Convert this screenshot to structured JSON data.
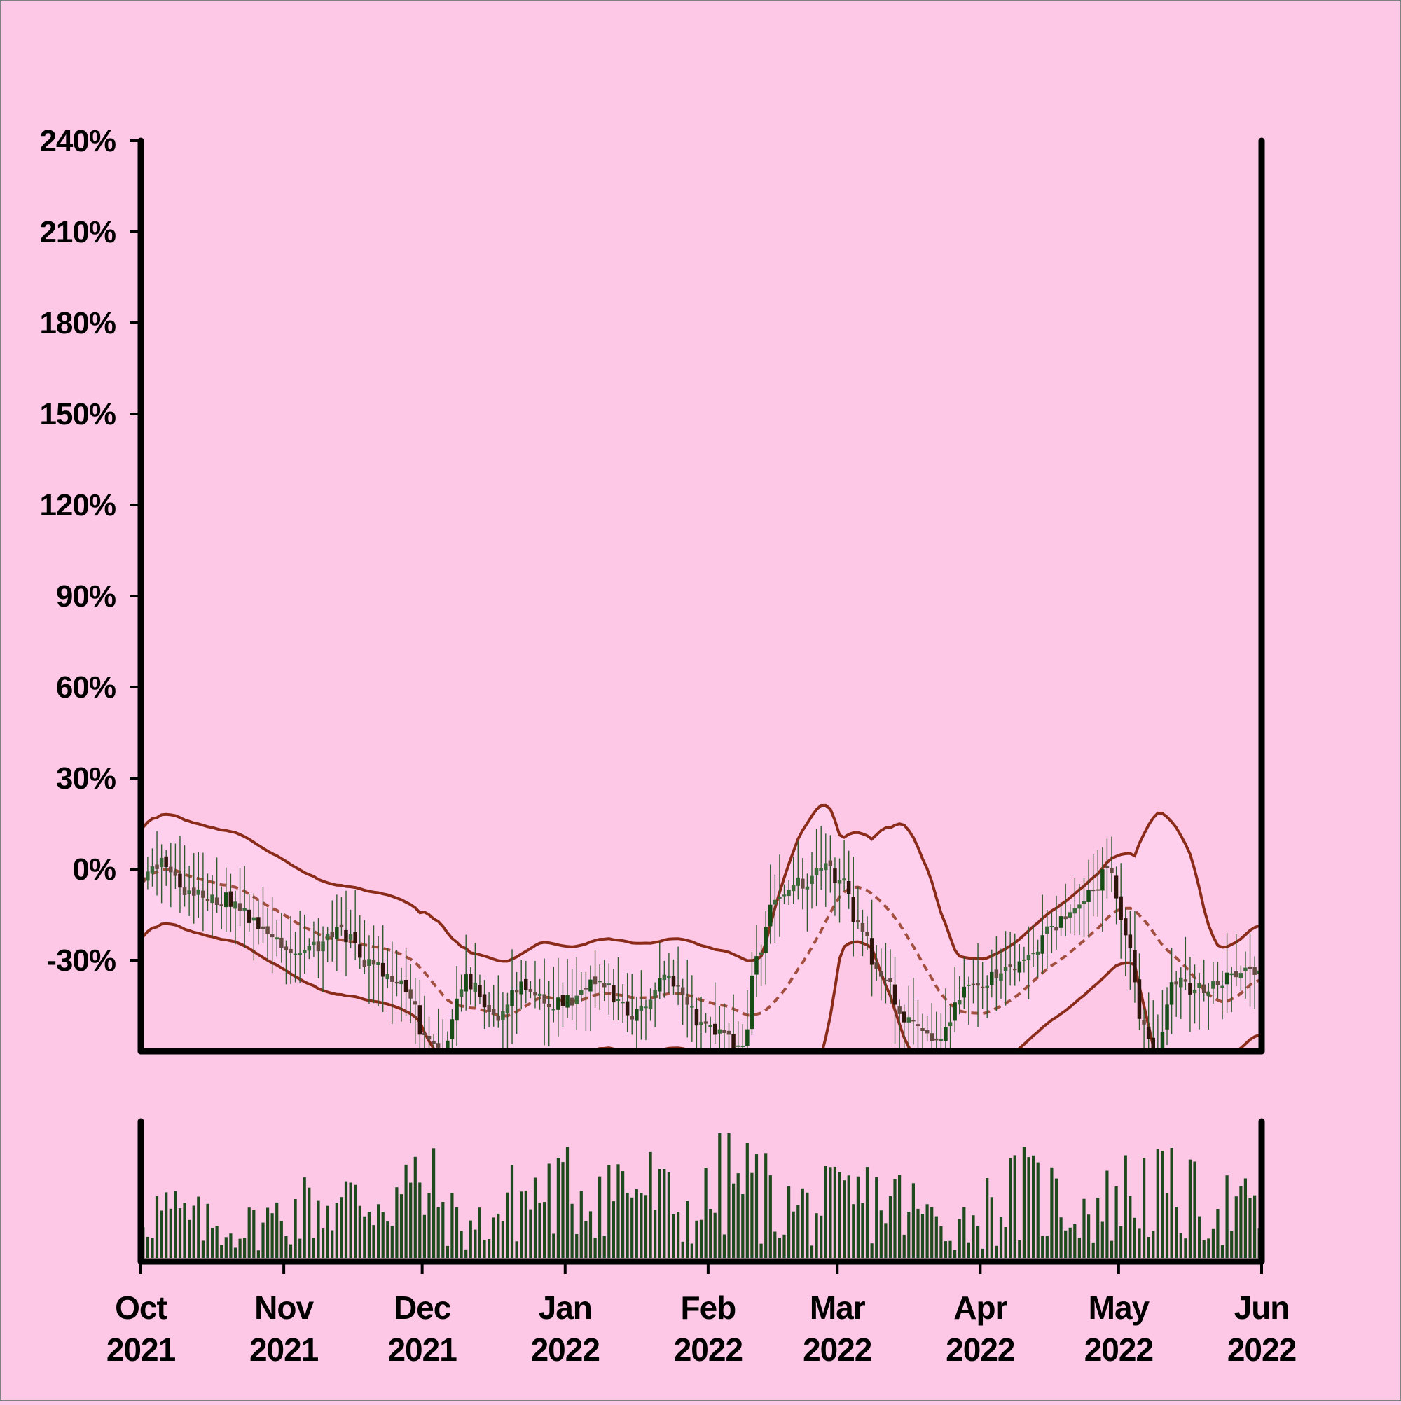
{
  "colors": {
    "background": "#fdc8e6",
    "axis": "#000000",
    "candle_up": "#3b6b3b",
    "candle_down": "#654c43",
    "candle_strong_up": "#174d17",
    "candle_strong_down": "#2f160c",
    "wick": "#2f5a2f",
    "band_line": "#8b2b1a",
    "middle_band": "#a24f3f",
    "band_fill": "#ffd0ee",
    "volume_bar": "#1e4a1e"
  },
  "chart_data": {
    "type": "candlestick",
    "overlays": [
      "bollinger_upper",
      "bollinger_middle",
      "bollinger_lower"
    ],
    "y_axis": {
      "ticks": [
        -30,
        0,
        30,
        60,
        90,
        120,
        150,
        180,
        210,
        240
      ],
      "tick_labels": [
        "-30%",
        "0%",
        "30%",
        "60%",
        "90%",
        "120%",
        "150%",
        "180%",
        "210%",
        "240%"
      ],
      "range": [
        -60,
        240
      ],
      "unit": "%"
    },
    "x_axis": {
      "range": [
        "2021-10-01",
        "2022-06-01"
      ],
      "ticks": [
        {
          "date": "2021-10-01",
          "month": "Oct",
          "year": "2021"
        },
        {
          "date": "2021-11-01",
          "month": "Nov",
          "year": "2021"
        },
        {
          "date": "2021-12-01",
          "month": "Dec",
          "year": "2021"
        },
        {
          "date": "2022-01-01",
          "month": "Jan",
          "year": "2022"
        },
        {
          "date": "2022-02-01",
          "month": "Feb",
          "year": "2022"
        },
        {
          "date": "2022-03-01",
          "month": "Mar",
          "year": "2022"
        },
        {
          "date": "2022-04-01",
          "month": "Apr",
          "year": "2022"
        },
        {
          "date": "2022-05-01",
          "month": "May",
          "year": "2022"
        },
        {
          "date": "2022-06-01",
          "month": "Jun",
          "year": "2022"
        }
      ]
    },
    "close_keypoints": [
      [
        "2021-10-01",
        -2
      ],
      [
        "2021-10-05",
        3
      ],
      [
        "2021-10-10",
        -8
      ],
      [
        "2021-10-20",
        -10
      ],
      [
        "2021-10-28",
        -22
      ],
      [
        "2021-11-05",
        -28
      ],
      [
        "2021-11-12",
        -20
      ],
      [
        "2021-11-20",
        -32
      ],
      [
        "2021-11-27",
        -38
      ],
      [
        "2021-12-01",
        -56
      ],
      [
        "2021-12-05",
        -60
      ],
      [
        "2021-12-10",
        -37
      ],
      [
        "2021-12-17",
        -50
      ],
      [
        "2021-12-22",
        -38
      ],
      [
        "2021-12-30",
        -44
      ],
      [
        "2022-01-08",
        -38
      ],
      [
        "2022-01-15",
        -48
      ],
      [
        "2022-01-23",
        -36
      ],
      [
        "2022-01-30",
        -50
      ],
      [
        "2022-02-08",
        -58
      ],
      [
        "2022-02-11",
        -30
      ],
      [
        "2022-02-15",
        -10
      ],
      [
        "2022-02-20",
        -5
      ],
      [
        "2022-02-26",
        0
      ],
      [
        "2022-03-01",
        -3
      ],
      [
        "2022-03-05",
        -18
      ],
      [
        "2022-03-10",
        -35
      ],
      [
        "2022-03-16",
        -50
      ],
      [
        "2022-03-22",
        -58
      ],
      [
        "2022-03-28",
        -40
      ],
      [
        "2022-04-03",
        -36
      ],
      [
        "2022-04-10",
        -30
      ],
      [
        "2022-04-17",
        -18
      ],
      [
        "2022-04-25",
        -8
      ],
      [
        "2022-04-28",
        1
      ],
      [
        "2022-05-02",
        -22
      ],
      [
        "2022-05-06",
        -52
      ],
      [
        "2022-05-09",
        -60
      ],
      [
        "2022-05-12",
        -36
      ],
      [
        "2022-05-18",
        -40
      ],
      [
        "2022-05-25",
        -35
      ],
      [
        "2022-06-01",
        -32
      ]
    ],
    "volume_keypoints": [
      [
        "2021-10-01",
        0.5
      ],
      [
        "2021-10-20",
        0.3
      ],
      [
        "2021-11-10",
        0.55
      ],
      [
        "2021-12-01",
        0.7
      ],
      [
        "2021-12-10",
        0.3
      ],
      [
        "2021-12-25",
        0.65
      ],
      [
        "2022-01-15",
        0.75
      ],
      [
        "2022-01-28",
        0.45
      ],
      [
        "2022-02-05",
        0.8
      ],
      [
        "2022-02-20",
        0.5
      ],
      [
        "2022-03-10",
        0.6
      ],
      [
        "2022-03-25",
        0.35
      ],
      [
        "2022-04-10",
        0.65
      ],
      [
        "2022-04-25",
        0.5
      ],
      [
        "2022-05-05",
        0.7
      ],
      [
        "2022-05-20",
        0.55
      ],
      [
        "2022-06-01",
        0.45
      ]
    ],
    "bollinger_window_days": 20,
    "bollinger_stddevs": 2,
    "grid": false,
    "legend": "none",
    "panels": [
      "price",
      "volume"
    ]
  }
}
